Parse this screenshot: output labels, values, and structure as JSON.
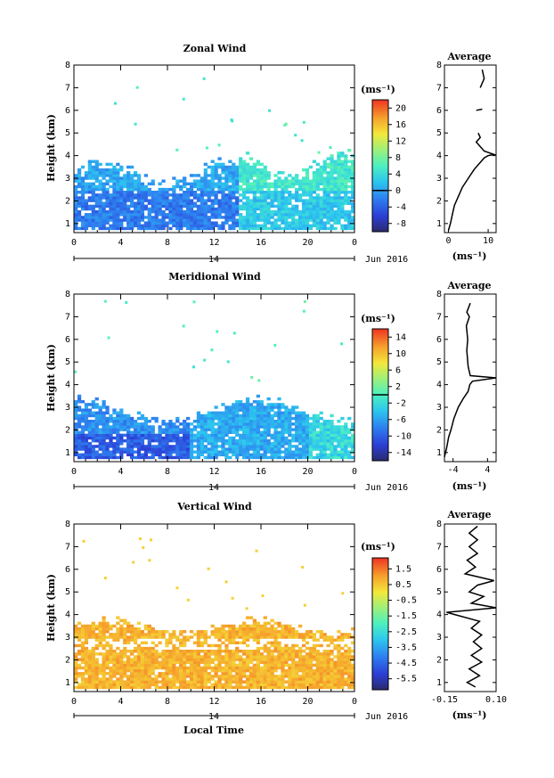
{
  "chart_data": [
    {
      "type": "heatmap",
      "title": "Zonal Wind",
      "xlabel": "",
      "ylabel": "Height (km)",
      "x_ticks": [
        "0",
        "4",
        "8",
        "12",
        "16",
        "20",
        "0"
      ],
      "y_ticks": [
        "1",
        "2",
        "3",
        "4",
        "5",
        "6",
        "7",
        "8"
      ],
      "xlim": [
        0,
        24
      ],
      "ylim": [
        0.6,
        8.0
      ],
      "date_marker": "14",
      "date_label": "Jun 2016",
      "colorbar": {
        "unit": "(ms⁻¹)",
        "ticks": [
          "20",
          "16",
          "12",
          "8",
          "4",
          "0",
          "-4",
          "-8"
        ],
        "range": [
          -10,
          22
        ],
        "contour_at": 0
      },
      "average_profile": {
        "title": "Average",
        "xlabel": "(ms⁻¹)",
        "x_ticks": [
          "0",
          "10"
        ],
        "xlim": [
          -1,
          12
        ],
        "points": [
          [
            0.0,
            0.7
          ],
          [
            0.5,
            1.0
          ],
          [
            1.0,
            1.4
          ],
          [
            1.5,
            1.8
          ],
          [
            2.5,
            2.2
          ],
          [
            3.5,
            2.6
          ],
          [
            5.0,
            3.0
          ],
          [
            6.5,
            3.4
          ],
          [
            8.0,
            3.7
          ],
          [
            9.0,
            3.9
          ],
          [
            10.0,
            4.0
          ],
          [
            11.5,
            4.05
          ],
          [
            9.0,
            4.2
          ],
          [
            8.0,
            4.4
          ],
          [
            7.0,
            4.6
          ],
          [
            8.0,
            4.8
          ],
          [
            7.5,
            5.0
          ]
        ],
        "extra_segments": [
          [
            [
              7.0,
              6.0
            ],
            [
              8.5,
              6.05
            ]
          ],
          [
            [
              8.0,
              7.0
            ],
            [
              9.0,
              7.4
            ],
            [
              8.5,
              7.8
            ]
          ]
        ]
      }
    },
    {
      "type": "heatmap",
      "title": "Meridional Wind",
      "xlabel": "",
      "ylabel": "Height (km)",
      "x_ticks": [
        "0",
        "4",
        "8",
        "12",
        "16",
        "20",
        "0"
      ],
      "y_ticks": [
        "1",
        "2",
        "3",
        "4",
        "5",
        "6",
        "7",
        "8"
      ],
      "xlim": [
        0,
        24
      ],
      "ylim": [
        0.6,
        8.0
      ],
      "date_marker": "14",
      "date_label": "Jun 2016",
      "colorbar": {
        "unit": "(ms⁻¹)",
        "ticks": [
          "14",
          "10",
          "6",
          "2",
          "-2",
          "-6",
          "-10",
          "-14"
        ],
        "range": [
          -16,
          16
        ],
        "contour_at": 0
      },
      "average_profile": {
        "title": "Average",
        "xlabel": "(ms⁻¹)",
        "x_ticks": [
          "-4",
          "4"
        ],
        "xlim": [
          -6,
          6
        ],
        "points": [
          [
            -6.0,
            0.8
          ],
          [
            -5.5,
            1.2
          ],
          [
            -5.0,
            1.7
          ],
          [
            -4.5,
            2.0
          ],
          [
            -3.8,
            2.5
          ],
          [
            -2.8,
            3.0
          ],
          [
            -1.6,
            3.4
          ],
          [
            -0.5,
            3.7
          ],
          [
            -0.1,
            4.0
          ],
          [
            0.5,
            4.15
          ],
          [
            6.0,
            4.3
          ],
          [
            0.0,
            4.4
          ],
          [
            -0.5,
            4.8
          ],
          [
            -0.8,
            5.5
          ],
          [
            -0.6,
            6.0
          ],
          [
            -0.9,
            6.6
          ],
          [
            -0.2,
            7.0
          ],
          [
            -0.8,
            7.2
          ],
          [
            0.0,
            7.6
          ]
        ],
        "extra_segments": []
      }
    },
    {
      "type": "heatmap",
      "title": "Vertical Wind",
      "xlabel": "Local Time",
      "ylabel": "Height (km)",
      "x_ticks": [
        "0",
        "4",
        "8",
        "12",
        "16",
        "20",
        "0"
      ],
      "y_ticks": [
        "1",
        "2",
        "3",
        "4",
        "5",
        "6",
        "7",
        "8"
      ],
      "xlim": [
        0,
        24
      ],
      "ylim": [
        0.6,
        8.0
      ],
      "date_marker": "14",
      "date_label": "Jun 2016",
      "colorbar": {
        "unit": "(ms⁻¹)",
        "ticks": [
          "1.5",
          "0.5",
          "-0.5",
          "-1.5",
          "-2.5",
          "-3.5",
          "-4.5",
          "-5.5"
        ],
        "range": [
          -6.2,
          2.2
        ],
        "contour_at": null
      },
      "average_profile": {
        "title": "Average",
        "xlabel": "(ms⁻¹)",
        "x_ticks": [
          "-0.15",
          "0.10"
        ],
        "xlim": [
          -0.15,
          0.1
        ],
        "points": [
          [
            0.0,
            0.8
          ],
          [
            -0.04,
            1.0
          ],
          [
            0.02,
            1.3
          ],
          [
            -0.03,
            1.6
          ],
          [
            0.03,
            1.9
          ],
          [
            -0.02,
            2.2
          ],
          [
            0.03,
            2.5
          ],
          [
            -0.01,
            2.8
          ],
          [
            0.03,
            3.1
          ],
          [
            -0.02,
            3.4
          ],
          [
            0.02,
            3.7
          ],
          [
            -0.14,
            4.1
          ],
          [
            0.1,
            4.3
          ],
          [
            -0.02,
            4.5
          ],
          [
            0.04,
            4.8
          ],
          [
            -0.03,
            5.0
          ],
          [
            0.01,
            5.3
          ],
          [
            0.09,
            5.5
          ],
          [
            -0.05,
            5.8
          ],
          [
            0.0,
            6.1
          ],
          [
            -0.04,
            6.4
          ],
          [
            0.01,
            6.7
          ],
          [
            -0.03,
            7.0
          ],
          [
            0.01,
            7.3
          ],
          [
            -0.03,
            7.6
          ],
          [
            0.01,
            7.9
          ]
        ],
        "extra_segments": []
      }
    }
  ]
}
